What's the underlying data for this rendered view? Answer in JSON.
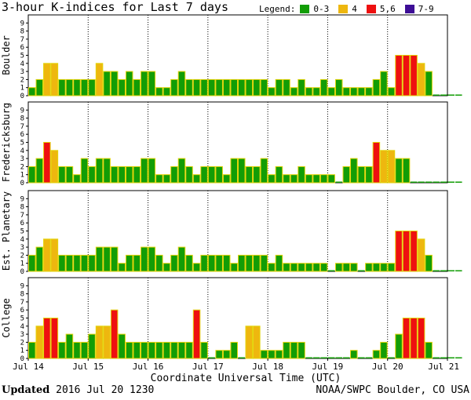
{
  "chart_data": {
    "type": "bar",
    "title": "3-hour K-indices for Last 7 days",
    "legend_label": "Legend:",
    "legend": [
      {
        "label": "0-3",
        "color": "#129d06"
      },
      {
        "label": "4",
        "color": "#eeb70f"
      },
      {
        "label": "5,6",
        "color": "#ee1010"
      },
      {
        "label": "7-9",
        "color": "#3d0e96"
      }
    ],
    "ylim": [
      0,
      9
    ],
    "y_ticks": [
      "0",
      "1",
      "2",
      "3",
      "4",
      "5",
      "6",
      "7",
      "8",
      "9"
    ],
    "x_ticks": [
      "Jul 14",
      "Jul 15",
      "Jul 16",
      "Jul 17",
      "Jul 18",
      "Jul 19",
      "Jul 20",
      "Jul 21"
    ],
    "xlabel": "Coordinate Universal Time (UTC)",
    "bins_per_day": 8,
    "colors": {
      "low": "#129d06",
      "k4": "#eeb70f",
      "k56": "#ee1010",
      "k79": "#3d0e96",
      "outline": "#e3d40a"
    },
    "panels": [
      {
        "name": "Boulder",
        "values": [
          1,
          2,
          4,
          4,
          2,
          2,
          2,
          2,
          2,
          4,
          3,
          3,
          2,
          3,
          2,
          3,
          3,
          1,
          1,
          2,
          3,
          2,
          2,
          2,
          2,
          2,
          2,
          2,
          2,
          2,
          2,
          2,
          1,
          2,
          2,
          1,
          2,
          1,
          1,
          2,
          1,
          2,
          1,
          1,
          1,
          1,
          2,
          3,
          1,
          5,
          5,
          5,
          4,
          3,
          0,
          0,
          0,
          0
        ]
      },
      {
        "name": "Fredericksburg",
        "values": [
          2,
          3,
          5,
          4,
          2,
          2,
          1,
          3,
          2,
          3,
          3,
          2,
          2,
          2,
          2,
          3,
          3,
          1,
          1,
          2,
          3,
          2,
          1,
          2,
          2,
          2,
          1,
          3,
          3,
          2,
          2,
          3,
          1,
          2,
          1,
          1,
          2,
          1,
          1,
          1,
          1,
          0,
          2,
          3,
          2,
          2,
          5,
          4,
          4,
          3,
          3,
          0,
          0,
          0,
          0,
          0,
          0,
          0
        ]
      },
      {
        "name": "Est. Planetary",
        "values": [
          2,
          3,
          4,
          4,
          2,
          2,
          2,
          2,
          2,
          3,
          3,
          3,
          1,
          2,
          2,
          3,
          3,
          2,
          1,
          2,
          3,
          2,
          1,
          2,
          2,
          2,
          2,
          1,
          2,
          2,
          2,
          2,
          1,
          2,
          1,
          1,
          1,
          1,
          1,
          1,
          0,
          1,
          1,
          1,
          0,
          1,
          1,
          1,
          1,
          5,
          5,
          5,
          4,
          2,
          0,
          0,
          0,
          0
        ]
      },
      {
        "name": "College",
        "values": [
          2,
          4,
          5,
          5,
          2,
          3,
          2,
          2,
          3,
          4,
          4,
          6,
          3,
          2,
          2,
          2,
          2,
          2,
          2,
          2,
          2,
          2,
          6,
          2,
          0,
          1,
          1,
          2,
          0,
          4,
          4,
          1,
          1,
          1,
          2,
          2,
          2,
          0,
          0,
          0,
          0,
          0,
          0,
          1,
          0,
          0,
          1,
          2,
          0,
          3,
          5,
          5,
          5,
          2,
          0,
          0,
          0,
          0
        ]
      }
    ]
  },
  "footer": {
    "updated_label": "Updated",
    "updated_value": "2016 Jul 20 1230",
    "source": "NOAA/SWPC Boulder, CO USA"
  }
}
